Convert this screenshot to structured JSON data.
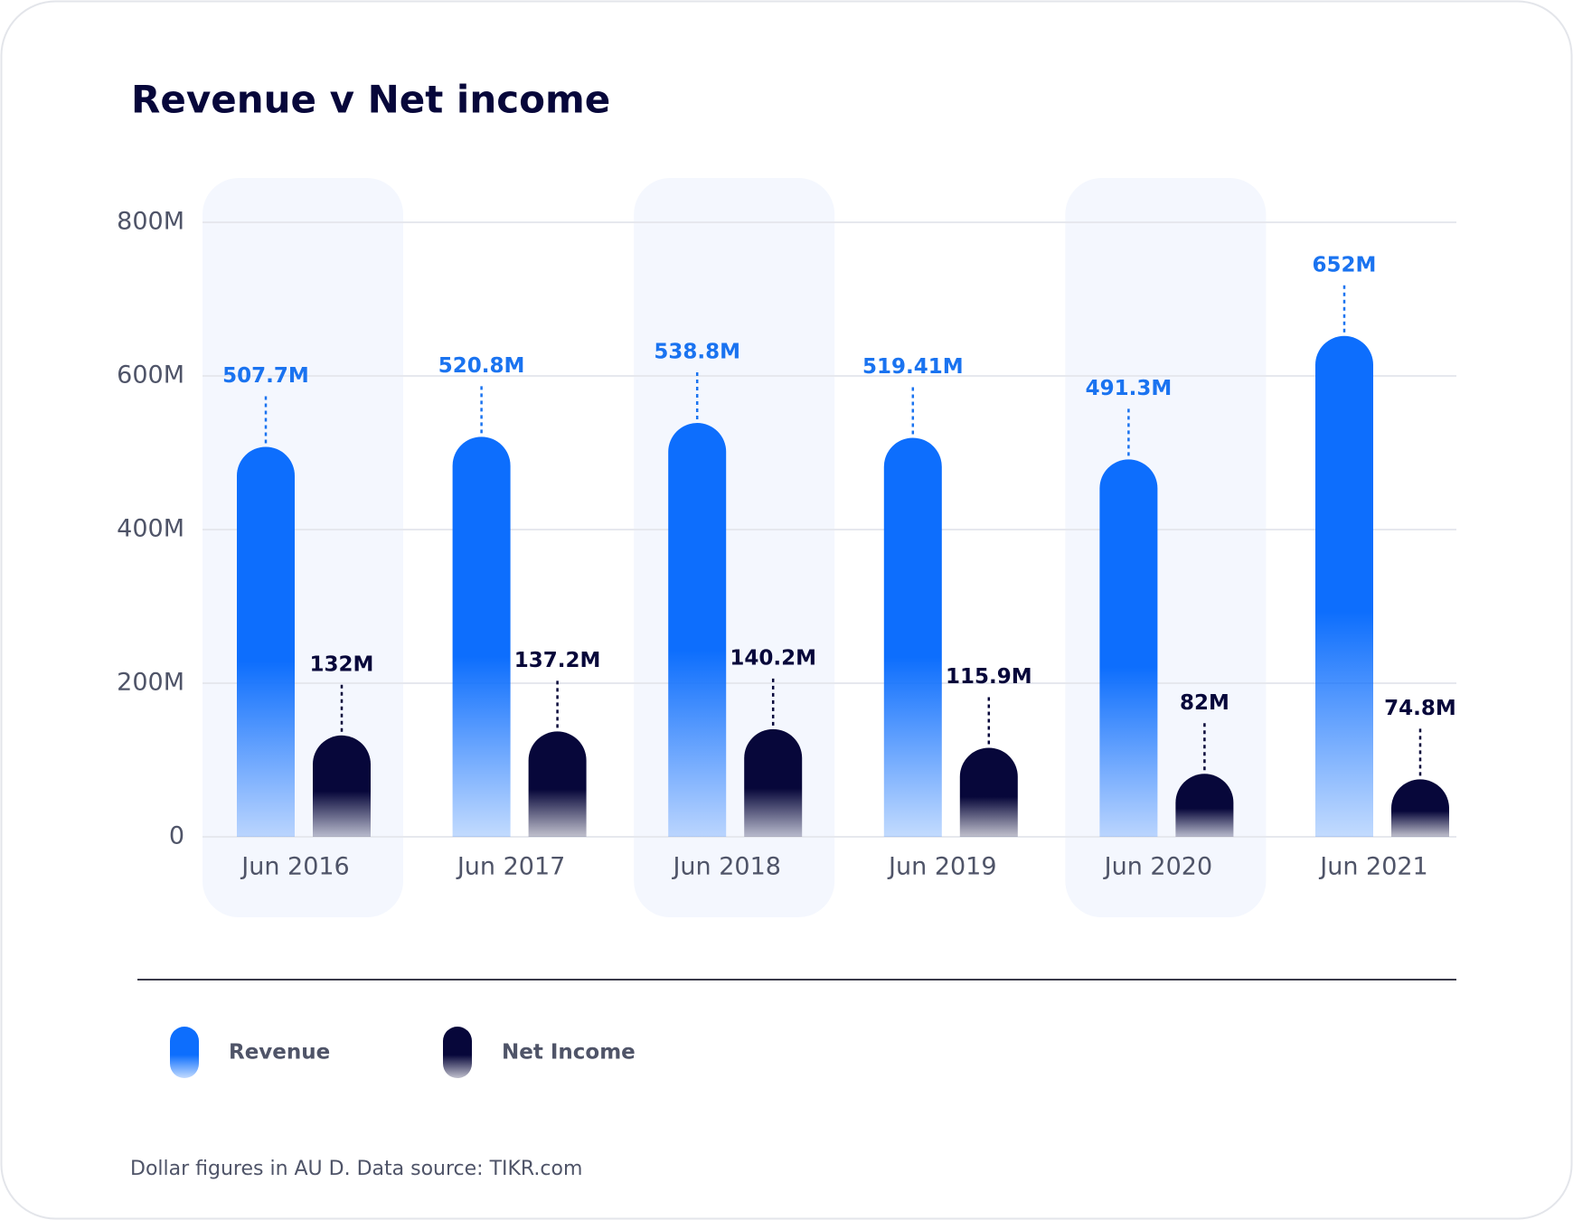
{
  "chart_data": {
    "type": "bar",
    "title": "Revenue v Net income",
    "categories": [
      "Jun 2016",
      "Jun 2017",
      "Jun 2018",
      "Jun 2019",
      "Jun 2020",
      "Jun 2021"
    ],
    "series": [
      {
        "name": "Revenue",
        "color": "#0d6efd",
        "values": [
          507.7,
          520.8,
          538.8,
          519.41,
          491.3,
          652
        ],
        "value_labels": [
          "507.7M",
          "520.8M",
          "538.8M",
          "519.41M",
          "491.3M",
          "652M"
        ]
      },
      {
        "name": "Net Income",
        "color": "#07073a",
        "values": [
          132,
          137.2,
          140.2,
          115.9,
          82,
          74.8
        ],
        "value_labels": [
          "132M",
          "137.2M",
          "140.2M",
          "115.9M",
          "82M",
          "74.8M"
        ]
      }
    ],
    "ylim": [
      0,
      800
    ],
    "yticks": [
      0,
      {
        "value": 200,
        "label": "200M"
      },
      {
        "value": 400,
        "label": "400M"
      },
      {
        "value": 600,
        "label": "600M"
      },
      {
        "value": 800,
        "label": "800M"
      }
    ],
    "grid": true,
    "note": "Dollar figures in AU D. Data source: TIKR.com"
  }
}
